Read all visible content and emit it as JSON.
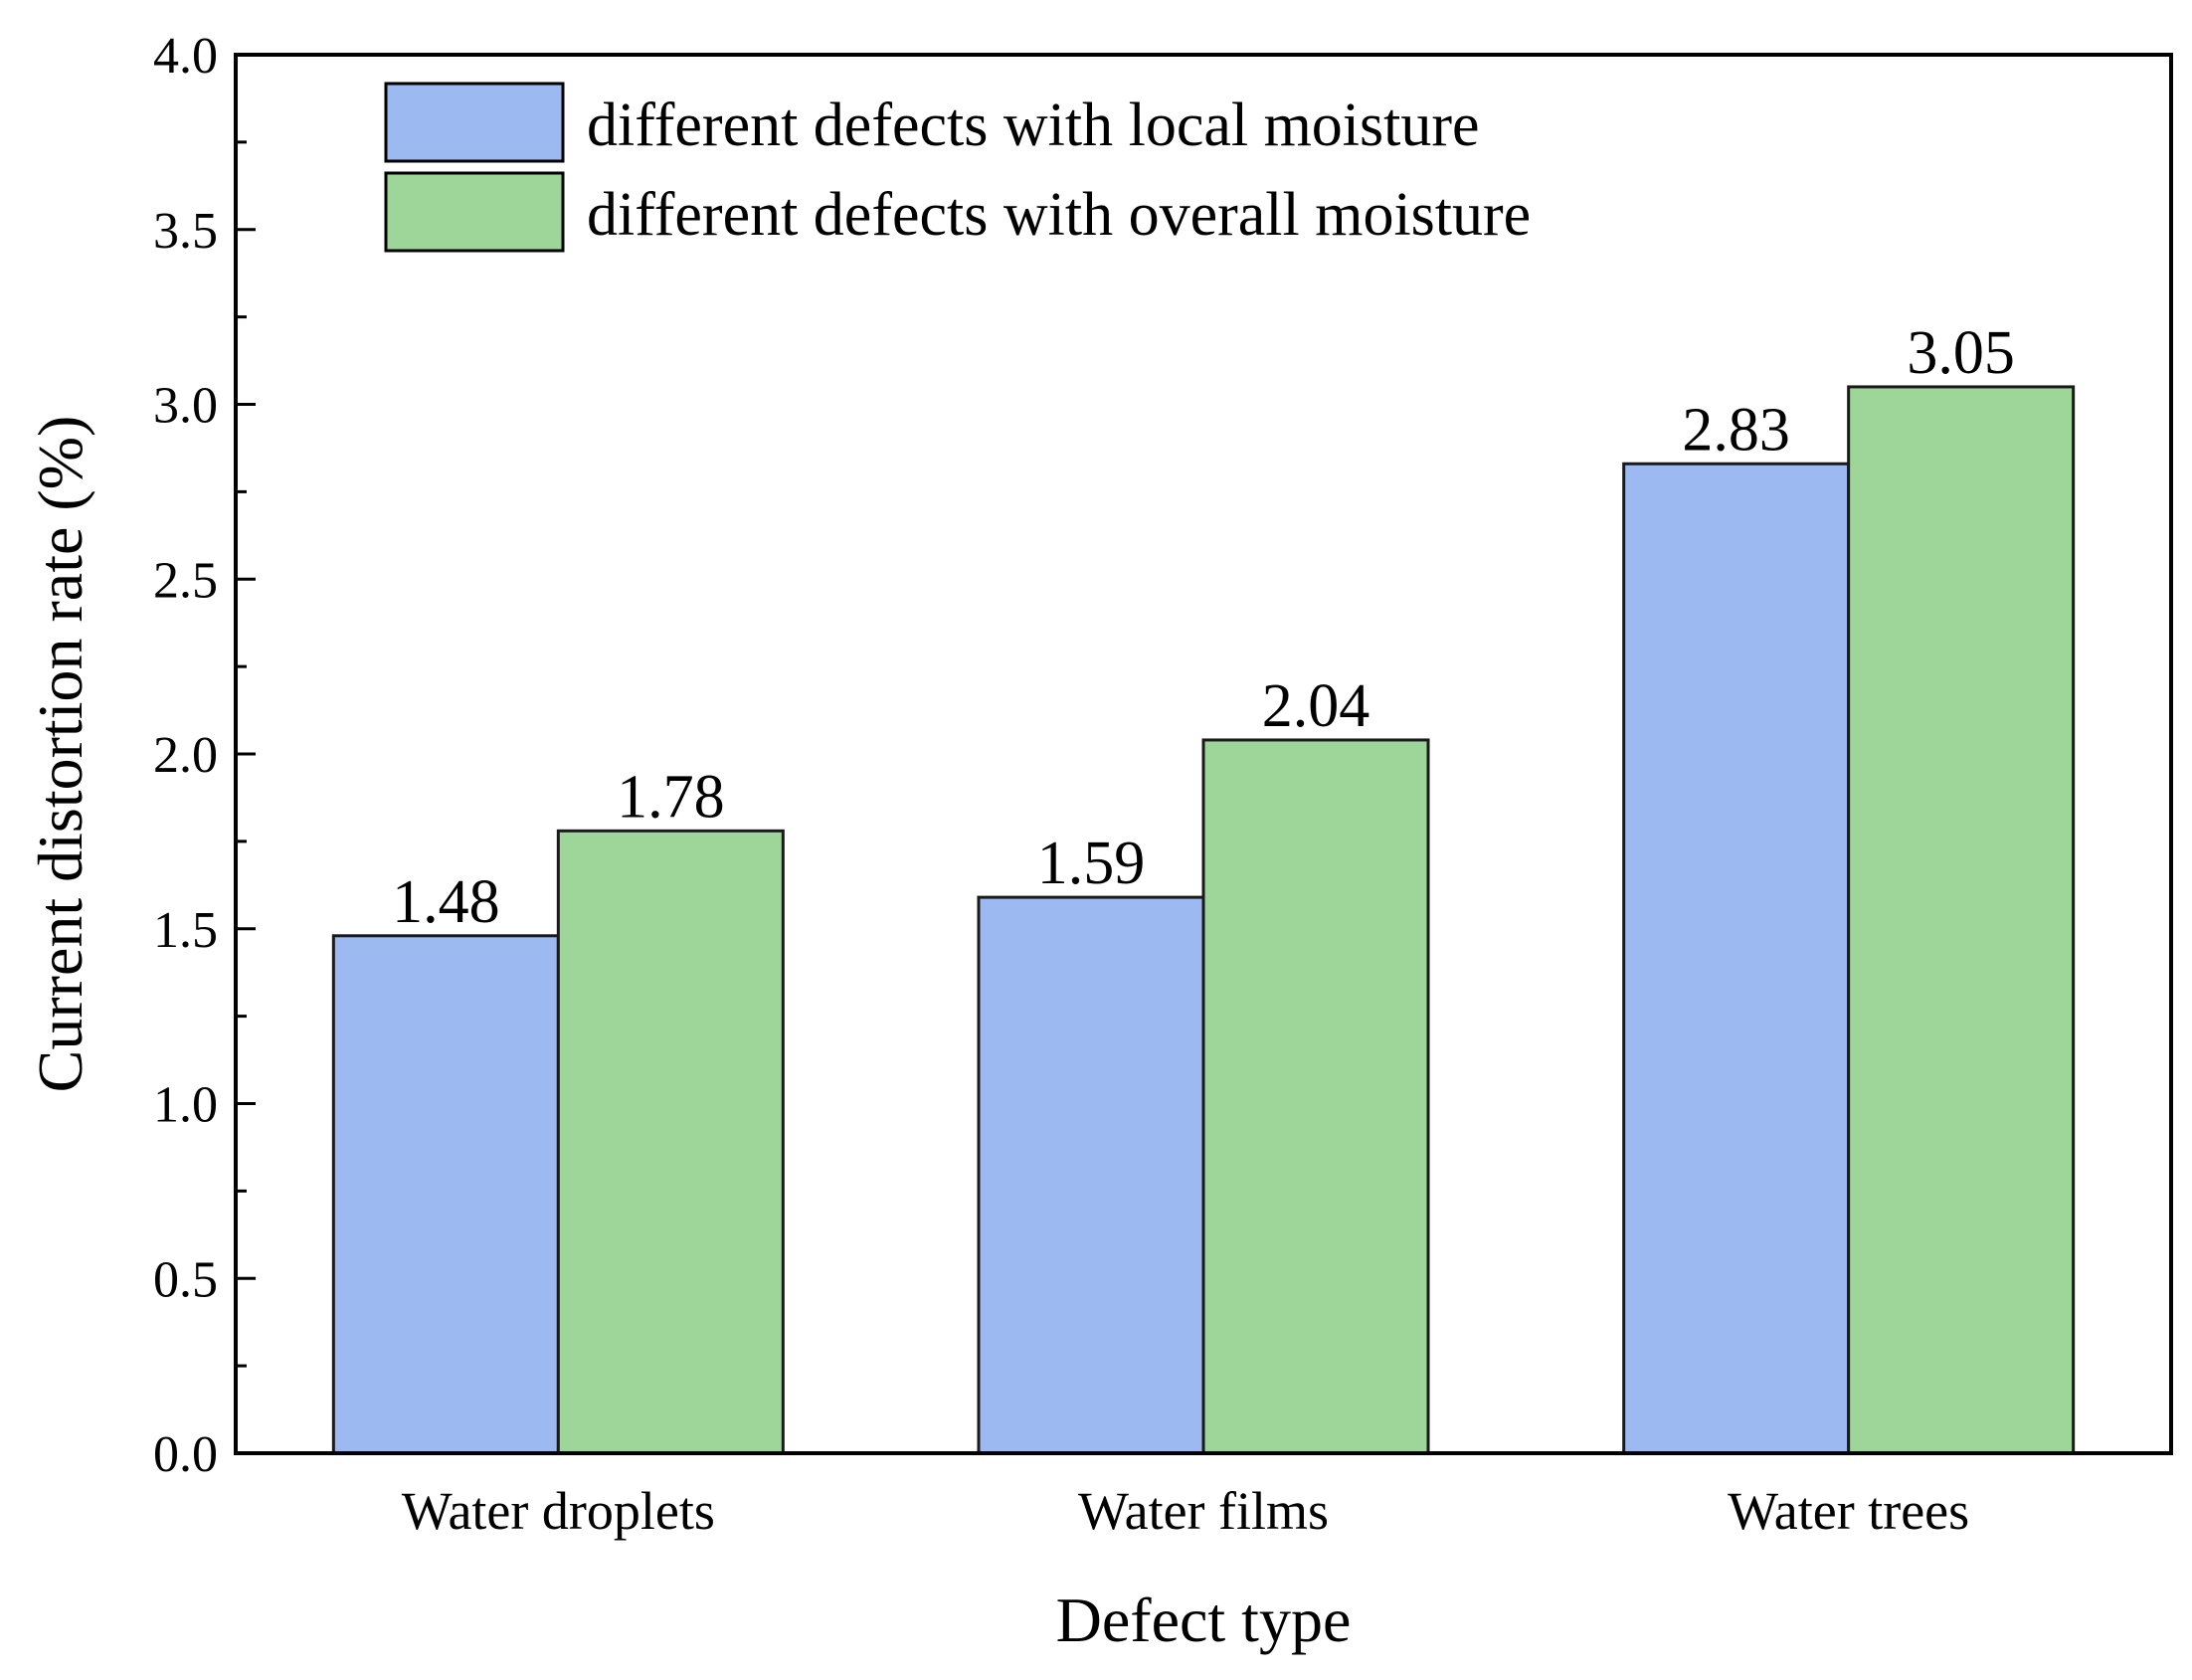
{
  "chart_data": {
    "type": "bar",
    "title": "",
    "xlabel": "Defect type",
    "ylabel": "Current distortion rate (%)",
    "ylim": [
      0,
      4.0
    ],
    "yticks": [
      "0.0",
      "0.5",
      "1.0",
      "1.5",
      "2.0",
      "2.5",
      "3.0",
      "3.5",
      "4.0"
    ],
    "categories": [
      "Water droplets",
      "Water films",
      "Water trees"
    ],
    "series": [
      {
        "name": "different defects with local moisture",
        "color": "#9db9f1",
        "values": [
          1.48,
          1.59,
          2.83
        ],
        "labels": [
          "1.48",
          "1.59",
          "2.83"
        ]
      },
      {
        "name": "different defects with overall moisture",
        "color": "#9ed69a",
        "values": [
          1.78,
          2.04,
          3.05
        ],
        "labels": [
          "1.78",
          "2.04",
          "3.05"
        ]
      }
    ],
    "legend_position": "top-left",
    "grid": false
  }
}
